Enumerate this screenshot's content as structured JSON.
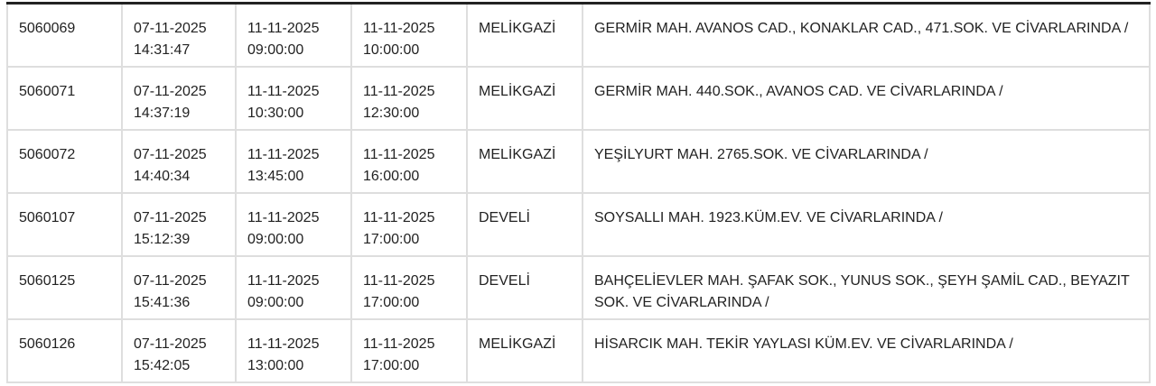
{
  "rows": [
    {
      "id": "5060069",
      "created_date": "07-11-2025",
      "created_time": "14:31:47",
      "start_date": "11-11-2025",
      "start_time": "09:00:00",
      "end_date": "11-11-2025",
      "end_time": "10:00:00",
      "district": "MELİKGAZİ",
      "address": "GERMİR MAH. AVANOS CAD., KONAKLAR CAD., 471.SOK. VE CİVARLARINDA /"
    },
    {
      "id": "5060071",
      "created_date": "07-11-2025",
      "created_time": "14:37:19",
      "start_date": "11-11-2025",
      "start_time": "10:30:00",
      "end_date": "11-11-2025",
      "end_time": "12:30:00",
      "district": "MELİKGAZİ",
      "address": "GERMİR MAH. 440.SOK., AVANOS CAD. VE CİVARLARINDA /"
    },
    {
      "id": "5060072",
      "created_date": "07-11-2025",
      "created_time": "14:40:34",
      "start_date": "11-11-2025",
      "start_time": "13:45:00",
      "end_date": "11-11-2025",
      "end_time": "16:00:00",
      "district": "MELİKGAZİ",
      "address": "YEŞİLYURT MAH. 2765.SOK. VE CİVARLARINDA /"
    },
    {
      "id": "5060107",
      "created_date": "07-11-2025",
      "created_time": "15:12:39",
      "start_date": "11-11-2025",
      "start_time": "09:00:00",
      "end_date": "11-11-2025",
      "end_time": "17:00:00",
      "district": "DEVELİ",
      "address": "SOYSALLI MAH. 1923.KÜM.EV. VE CİVARLARINDA /"
    },
    {
      "id": "5060125",
      "created_date": "07-11-2025",
      "created_time": "15:41:36",
      "start_date": "11-11-2025",
      "start_time": "09:00:00",
      "end_date": "11-11-2025",
      "end_time": "17:00:00",
      "district": "DEVELİ",
      "address": "BAHÇELİEVLER MAH. ŞAFAK SOK., YUNUS SOK., ŞEYH ŞAMİL CAD., BEYAZIT SOK. VE CİVARLARINDA /"
    },
    {
      "id": "5060126",
      "created_date": "07-11-2025",
      "created_time": "15:42:05",
      "start_date": "11-11-2025",
      "start_time": "13:00:00",
      "end_date": "11-11-2025",
      "end_time": "17:00:00",
      "district": "MELİKGAZİ",
      "address": "HİSARCIK MAH. TEKİR YAYLASI KÜM.EV. VE CİVARLARINDA /"
    }
  ]
}
